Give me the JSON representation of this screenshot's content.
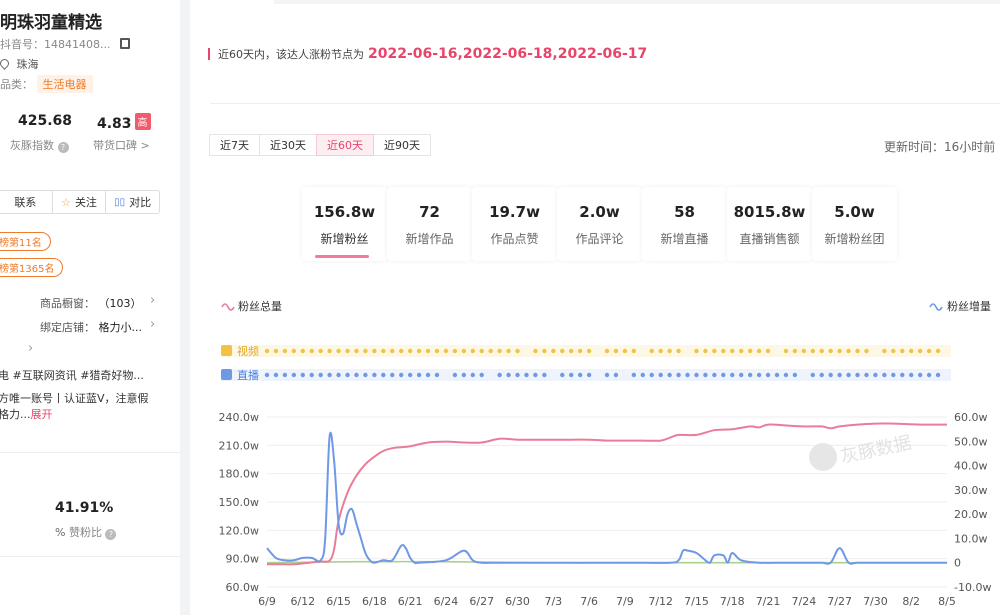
{
  "profile": {
    "name": "明珠羽童精选",
    "douyin_id": "抖音号：14841408...",
    "location": "珠海",
    "category_label": "品类：",
    "category": "生活电器",
    "index_value": "425.68",
    "index_label": "灰豚指数",
    "reputation_value": "4.83",
    "reputation_badge": "高",
    "reputation_label": "带货口碑 >",
    "contact": "联系",
    "follow": "关注",
    "compare": "对比",
    "rank1": "榜第11名",
    "rank2": "榜第1365名",
    "showcase_label": "商品橱窗：",
    "showcase_value": "（103）",
    "store_label": "绑定店铺：",
    "store_value": "格力小...",
    "hashtags": "电  #互联网资讯  #猎奇好物...",
    "desc1": "方唯一账号丨认证蓝V，注意假",
    "desc2": "格力...",
    "expand": "展开",
    "like_ratio": "41.91%",
    "like_ratio_label": "赞粉比"
  },
  "notice": {
    "text": "近60天内，该达人涨粉节点为",
    "dates": "2022-06-16,2022-06-18,2022-06-17"
  },
  "tabs": [
    {
      "label": "近7天",
      "active": false
    },
    {
      "label": "近30天",
      "active": false
    },
    {
      "label": "近60天",
      "active": true
    },
    {
      "label": "近90天",
      "active": false
    }
  ],
  "update_time": "更新时间：16小时前",
  "metrics": [
    {
      "value": "156.8w",
      "label": "新增粉丝",
      "active": true
    },
    {
      "value": "72",
      "label": "新增作品",
      "active": false
    },
    {
      "value": "19.7w",
      "label": "作品点赞",
      "active": false
    },
    {
      "value": "2.0w",
      "label": "作品评论",
      "active": false
    },
    {
      "value": "58",
      "label": "新增直播",
      "active": false
    },
    {
      "value": "8015.8w",
      "label": "直播销售额",
      "active": false
    },
    {
      "value": "5.0w",
      "label": "新增粉丝团",
      "active": false
    }
  ],
  "chart_data": {
    "type": "line",
    "legend": {
      "left": "粉丝总量",
      "right": "粉丝增量"
    },
    "track_labels": {
      "video": "视频",
      "live": "直播"
    },
    "x_ticks": [
      "6/9",
      "6/12",
      "6/15",
      "6/18",
      "6/21",
      "6/24",
      "6/27",
      "6/30",
      "7/3",
      "7/6",
      "7/9",
      "7/12",
      "7/15",
      "7/18",
      "7/21",
      "7/24",
      "7/27",
      "7/30",
      "8/2",
      "8/5"
    ],
    "y_left_ticks": [
      "240.0w",
      "210.0w",
      "180.0w",
      "150.0w",
      "120.0w",
      "90.0w",
      "60.0w"
    ],
    "y_left_range": [
      60,
      240
    ],
    "y_right_ticks": [
      "60.0w",
      "50.0w",
      "40.0w",
      "30.0w",
      "20.0w",
      "10.0w",
      "0",
      "-10.0w"
    ],
    "y_right_range": [
      -10,
      60
    ],
    "series": [
      {
        "name": "粉丝总量",
        "color": "#e97c98",
        "axis": "left",
        "x": [
          0,
          1,
          2,
          3,
          4,
          5,
          6,
          7,
          7.5,
          8,
          9,
          10,
          11,
          12,
          13,
          14,
          15,
          16,
          18,
          20,
          22,
          24,
          26,
          28,
          30,
          32,
          34,
          36,
          38,
          40,
          42,
          44,
          45,
          46,
          48,
          50,
          52,
          54,
          55,
          56,
          58,
          60,
          62,
          63,
          64,
          66,
          68,
          70,
          73,
          76
        ],
        "y": [
          84,
          84,
          84,
          84,
          85,
          86,
          87,
          88,
          100,
          130,
          160,
          178,
          190,
          198,
          204,
          207,
          208,
          209,
          213,
          214,
          213,
          213,
          217,
          216,
          216,
          216,
          216,
          216,
          215,
          215,
          215,
          215,
          218,
          221,
          221,
          226,
          227,
          230,
          229,
          232,
          231,
          230,
          230,
          228,
          230,
          232,
          233,
          233,
          232,
          232
        ]
      },
      {
        "name": "粉丝增量",
        "color": "#6f98e6",
        "axis": "right",
        "x": [
          0,
          1,
          2,
          3,
          4,
          5,
          6,
          6.5,
          7,
          7.5,
          8,
          8.5,
          9,
          9.5,
          10,
          10.5,
          11,
          11.5,
          12,
          13,
          14,
          15,
          15.5,
          16,
          16.5,
          17,
          20,
          22,
          23,
          24,
          26,
          30,
          34,
          40,
          45,
          46,
          46.5,
          47,
          48,
          49,
          49.5,
          50,
          51,
          51.5,
          52,
          53,
          55,
          58,
          60,
          62,
          63,
          64,
          65,
          66,
          68,
          70,
          73,
          76
        ],
        "y": [
          6,
          2,
          1,
          1,
          2,
          2,
          1,
          10,
          52,
          42,
          16,
          12,
          20,
          22,
          16,
          10,
          4,
          1,
          0,
          1,
          1,
          7,
          6,
          2,
          0,
          0,
          1,
          5,
          1,
          0,
          0,
          0,
          0,
          0,
          0,
          1,
          5,
          5,
          4,
          1,
          0,
          3,
          3,
          0,
          4,
          1,
          0,
          0,
          0,
          0,
          0,
          6,
          0,
          0,
          0,
          0,
          0,
          0
        ]
      },
      {
        "name": "",
        "color": "#a9d18e",
        "axis": "right",
        "x": [
          0,
          10,
          20,
          30,
          40,
          50,
          60,
          70,
          76
        ],
        "y": [
          0,
          0.4,
          0.4,
          0,
          0,
          0,
          0,
          0,
          0
        ]
      }
    ],
    "video_dots": [
      0,
      1,
      2,
      3,
      4,
      5,
      6,
      7,
      8,
      9,
      10,
      11,
      12,
      13,
      14,
      15,
      16,
      17,
      18,
      19,
      20,
      21,
      22,
      23,
      24,
      25,
      26,
      27,
      28,
      30,
      31,
      32,
      33,
      34,
      35,
      36,
      38,
      39,
      40,
      41,
      43,
      44,
      45,
      46,
      48,
      49,
      50,
      51,
      52,
      53,
      54,
      55,
      56,
      58,
      59,
      60,
      61,
      62,
      63,
      64,
      65,
      66,
      67,
      69,
      70,
      71,
      72,
      73,
      74,
      75
    ],
    "live_dots": [
      0,
      1,
      2,
      3,
      4,
      5,
      6,
      7,
      8,
      9,
      10,
      11,
      12,
      13,
      14,
      15,
      16,
      17,
      18,
      19,
      21,
      22,
      23,
      24,
      26,
      27,
      28,
      29,
      30,
      31,
      33,
      34,
      35,
      36,
      38,
      39,
      41,
      42,
      43,
      44,
      45,
      46,
      47,
      48,
      49,
      50,
      51,
      52,
      53,
      54,
      55,
      56,
      57,
      58,
      59,
      61,
      62,
      63,
      64,
      65,
      66,
      67,
      68,
      69,
      70,
      71,
      72,
      73,
      74,
      75
    ],
    "watermark": "灰豚数据",
    "title": "",
    "xlabel": "",
    "ylabel": ""
  }
}
